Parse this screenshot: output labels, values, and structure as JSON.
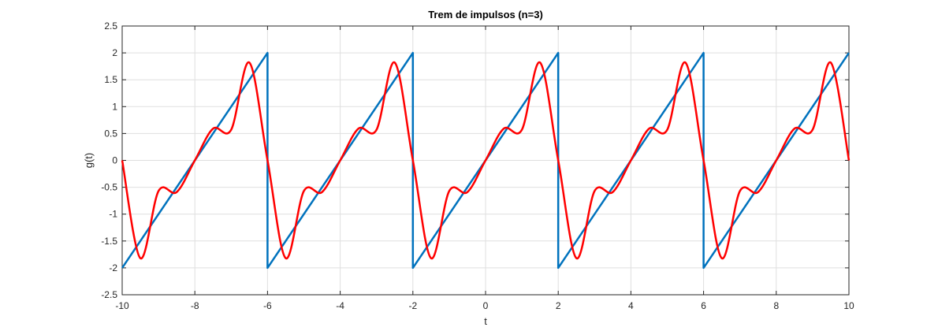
{
  "chart_data": {
    "type": "line",
    "title": "Trem de impulsos (n=3)",
    "xlabel": "t",
    "ylabel": "g(t)",
    "xlim": [
      -10,
      10
    ],
    "ylim": [
      -2.5,
      2.5
    ],
    "xticks": [
      -10,
      -8,
      -6,
      -4,
      -2,
      0,
      2,
      4,
      6,
      8,
      10
    ],
    "yticks": [
      -2.5,
      -2,
      -1.5,
      -1,
      -0.5,
      0,
      0.5,
      1,
      1.5,
      2,
      2.5
    ],
    "xtick_labels": [
      "-10",
      "-8",
      "-6",
      "-4",
      "-2",
      "0",
      "2",
      "4",
      "6",
      "8",
      "10"
    ],
    "ytick_labels": [
      "-2.5",
      "-2",
      "-1.5",
      "-1",
      "-0.5",
      "0",
      "0.5",
      "1",
      "1.5",
      "2",
      "2.5"
    ],
    "grid": true,
    "series": [
      {
        "color": "#0072BD",
        "x": [
          -10,
          -6,
          -6,
          -2,
          -2,
          2,
          2,
          6,
          6,
          10
        ],
        "y": [
          -2,
          2,
          -2,
          2,
          -2,
          2,
          -2,
          2,
          -2,
          2
        ]
      },
      {
        "color": "#FF0000",
        "x": [
          -10,
          -9.5,
          -9,
          -8.5,
          -8,
          -7.5,
          -7,
          -6.5,
          -6,
          -5.5,
          -5,
          -4.5,
          -4,
          -3.5,
          -3,
          -2.5,
          -2,
          -1.5,
          -1,
          -0.5,
          0,
          0.5,
          1,
          1.5,
          2,
          2.5,
          3,
          3.5,
          4,
          4.5,
          5,
          5.5,
          6,
          6.5,
          7,
          7.5,
          8,
          8.5,
          9,
          9.5,
          10
        ],
        "y": [
          0,
          -1.82,
          -0.57,
          -0.59,
          0,
          0.59,
          0.57,
          1.82,
          0,
          -1.82,
          -0.57,
          -0.59,
          0,
          0.59,
          0.57,
          1.82,
          0,
          -1.82,
          -0.57,
          -0.59,
          0,
          0.59,
          0.57,
          1.82,
          0,
          -1.82,
          -0.57,
          -0.59,
          0,
          0.59,
          0.57,
          1.82,
          0,
          -1.82,
          -0.57,
          -0.59,
          0,
          0.59,
          0.57,
          1.82,
          0
        ]
      }
    ]
  }
}
